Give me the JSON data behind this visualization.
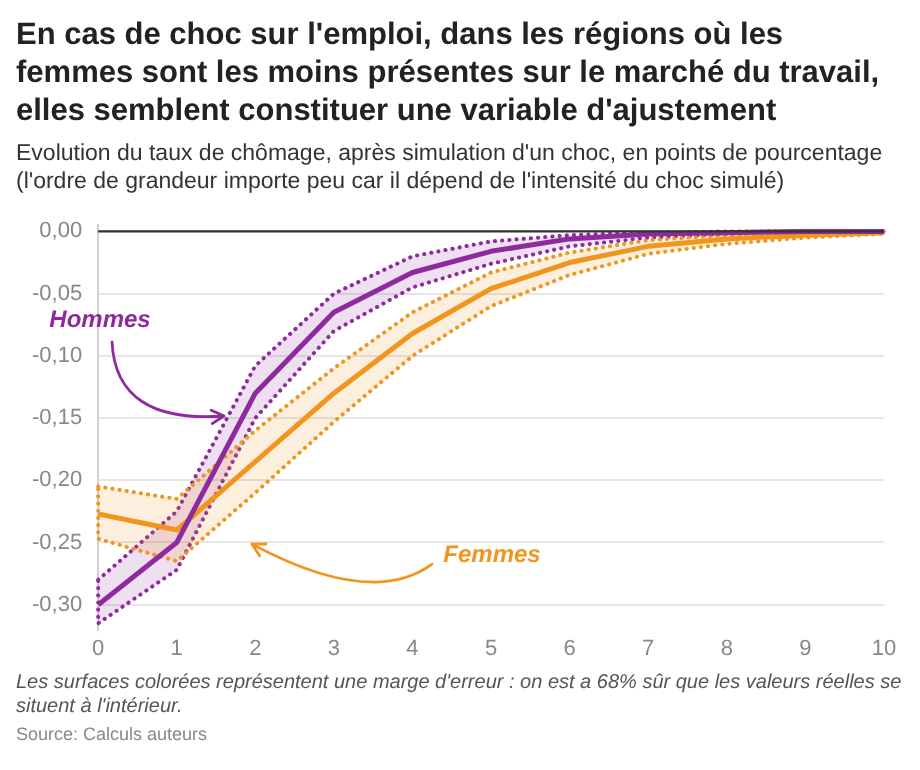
{
  "chart_data": {
    "type": "line",
    "title": "En cas de choc sur l'emploi, dans les régions où les femmes sont les moins présentes sur le marché du travail, elles semblent constituer une variable d'ajustement",
    "subtitle": "Evolution du taux de chômage, après simulation d'un choc, en points de pourcentage (l'ordre de grandeur importe peu car il dépend de l'intensité du choc simulé)",
    "x": [
      0,
      1,
      2,
      3,
      4,
      5,
      6,
      7,
      8,
      9,
      10
    ],
    "series": [
      {
        "name": "Hommes",
        "color": "#8e2a9e",
        "values": [
          -0.3,
          -0.25,
          -0.13,
          -0.065,
          -0.033,
          -0.016,
          -0.006,
          -0.002,
          -0.001,
          0,
          0
        ],
        "upper": [
          -0.28,
          -0.225,
          -0.108,
          -0.05,
          -0.02,
          -0.008,
          -0.003,
          -0.001,
          0,
          0,
          0
        ],
        "lower": [
          -0.315,
          -0.272,
          -0.15,
          -0.08,
          -0.045,
          -0.026,
          -0.012,
          -0.005,
          -0.002,
          -0.001,
          0
        ]
      },
      {
        "name": "Femmes",
        "color": "#f0961e",
        "values": [
          -0.227,
          -0.24,
          -0.185,
          -0.13,
          -0.082,
          -0.046,
          -0.025,
          -0.012,
          -0.006,
          -0.003,
          -0.001
        ],
        "upper": [
          -0.205,
          -0.215,
          -0.16,
          -0.11,
          -0.065,
          -0.033,
          -0.017,
          -0.007,
          -0.003,
          -0.001,
          0
        ],
        "lower": [
          -0.247,
          -0.265,
          -0.21,
          -0.153,
          -0.1,
          -0.06,
          -0.035,
          -0.018,
          -0.01,
          -0.005,
          -0.002
        ]
      }
    ],
    "xlim": [
      0,
      10
    ],
    "xticks": [
      0,
      1,
      2,
      3,
      4,
      5,
      6,
      7,
      8,
      9,
      10
    ],
    "ylim": [
      -0.32,
      0.005
    ],
    "yticks": [
      {
        "value": 0,
        "label": "0,00"
      },
      {
        "value": -0.05,
        "label": "-0,05"
      },
      {
        "value": -0.1,
        "label": "-0,10"
      },
      {
        "value": -0.15,
        "label": "-0,15"
      },
      {
        "value": -0.2,
        "label": "-0,20"
      },
      {
        "value": -0.25,
        "label": "-0,25"
      },
      {
        "value": -0.3,
        "label": "-0,30"
      }
    ],
    "ref_lines": [
      {
        "axis": "y",
        "value": 0,
        "color": "#333333"
      }
    ],
    "grid": "y",
    "legend": false,
    "marker": "none",
    "line_style": "solid",
    "annotations": [
      "Les surfaces colorées représentent une marge d'erreur : on est a 68% sûr que les valeurs réelles se situent à l'intérieur.",
      "Source: Calculs auteurs"
    ]
  }
}
